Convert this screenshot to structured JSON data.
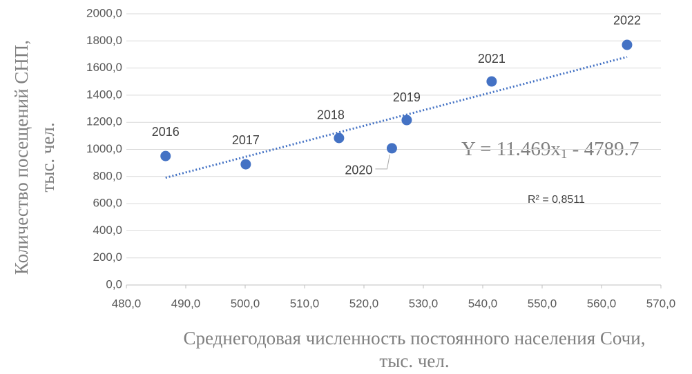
{
  "chart_data": {
    "type": "scatter",
    "x_label": [
      "Среднегодовая численность постоянного населения Сочи,",
      "тыс. чел."
    ],
    "y_label": [
      "Количество посещений СНП,",
      "тыс. чел."
    ],
    "labels": [
      "2016",
      "2017",
      "2018",
      "2019",
      "2020",
      "2021",
      "2022"
    ],
    "x": [
      486.6,
      500.1,
      515.8,
      527.2,
      524.7,
      541.5,
      564.3
    ],
    "values": [
      951,
      890,
      1084,
      1216,
      1008,
      1501,
      1771
    ],
    "color": "#4472c4",
    "xlim": [
      480,
      570
    ],
    "ylim": [
      0,
      2000
    ],
    "xticks": [
      {
        "value": 480,
        "label": "480,0"
      },
      {
        "value": 490,
        "label": "490,0"
      },
      {
        "value": 500,
        "label": "500,0"
      },
      {
        "value": 510,
        "label": "510,0"
      },
      {
        "value": 520,
        "label": "520,0"
      },
      {
        "value": 530,
        "label": "530,0"
      },
      {
        "value": 540,
        "label": "540,0"
      },
      {
        "value": 550,
        "label": "550,0"
      },
      {
        "value": 560,
        "label": "560,0"
      },
      {
        "value": 570,
        "label": "570,0"
      }
    ],
    "yticks": [
      {
        "value": 0,
        "label": "0,0"
      },
      {
        "value": 200,
        "label": "200,0"
      },
      {
        "value": 400,
        "label": "400,0"
      },
      {
        "value": 600,
        "label": "600,0"
      },
      {
        "value": 800,
        "label": "800,0"
      },
      {
        "value": 1000,
        "label": "1000,0"
      },
      {
        "value": 1200,
        "label": "1200,0"
      },
      {
        "value": 1400,
        "label": "1400,0"
      },
      {
        "value": 1600,
        "label": "1600,0"
      },
      {
        "value": 1800,
        "label": "1800,0"
      },
      {
        "value": 2000,
        "label": "2000,0"
      }
    ],
    "grid": true,
    "trendline": {
      "slope": 11.469,
      "intercept": -4789.7,
      "x": [
        486.6,
        564.3
      ]
    },
    "equation": {
      "main": "Y = 11.469x",
      "sub": "1",
      "rest": " - 4789.7"
    },
    "r2_label": "R² = 0,8511"
  }
}
